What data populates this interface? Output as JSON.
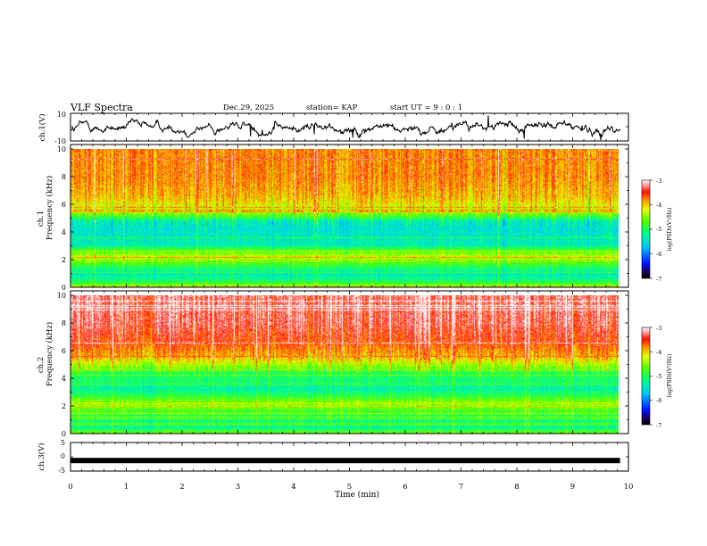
{
  "header": {
    "title": "VLF Spectra",
    "date": "Dec.29, 2025",
    "station": "station= KAP",
    "start": "start  UT =   9 : 0  : 1"
  },
  "chart_data": [
    {
      "type": "line",
      "name": "channel-1-voltage",
      "ylabel": "ch.1(V)",
      "ylim": [
        -10,
        10
      ],
      "ytick_labels": [
        "10",
        "-10"
      ],
      "x_range_min": [
        0,
        9.85
      ],
      "series": [
        {
          "name": "ch.1 waveform",
          "description": "noisy signal fluctuating roughly between -7 and 7 V"
        }
      ]
    },
    {
      "type": "heatmap",
      "name": "channel-1-spectrogram",
      "ylabel_line1": "ch.1",
      "ylabel_line2": "Frequency (kHz)",
      "ylim": [
        0,
        10
      ],
      "ytick_labels": [
        "0",
        "2",
        "4",
        "6",
        "8",
        "10"
      ],
      "x_range_min": [
        0,
        9.85
      ],
      "colorbar": {
        "label": "log(PSD)(V²/Hz)",
        "range": [
          -7,
          -3
        ],
        "tick_labels": [
          "-3",
          "-4",
          "-5",
          "-6",
          "-7"
        ]
      },
      "profile_kHz_log_psd": [
        [
          0.0,
          -4.4
        ],
        [
          0.6,
          -5.2
        ],
        [
          1.0,
          -5.4
        ],
        [
          1.5,
          -5.0
        ],
        [
          1.9,
          -4.6
        ],
        [
          2.2,
          -4.3
        ],
        [
          2.5,
          -4.6
        ],
        [
          2.8,
          -4.9
        ],
        [
          3.1,
          -5.4
        ],
        [
          3.6,
          -5.4
        ],
        [
          4.2,
          -5.5
        ],
        [
          4.8,
          -5.4
        ],
        [
          5.1,
          -4.9
        ],
        [
          5.5,
          -4.4
        ],
        [
          6.5,
          -4.0
        ],
        [
          8.0,
          -3.8
        ],
        [
          10.0,
          -3.8
        ]
      ]
    },
    {
      "type": "heatmap",
      "name": "channel-2-spectrogram",
      "ylabel_line1": "ch.2",
      "ylabel_line2": "Frequency (kHz)",
      "ylim": [
        0,
        10
      ],
      "ytick_labels": [
        "0",
        "2",
        "4",
        "6",
        "8",
        "10"
      ],
      "x_range_min": [
        0,
        9.85
      ],
      "colorbar": {
        "label": "log(PSD)(V²/Hz)",
        "range": [
          -7,
          -3
        ],
        "tick_labels": [
          "-3",
          "-4",
          "-5",
          "-6",
          "-7"
        ]
      },
      "profile_kHz_log_psd": [
        [
          0.0,
          -4.5
        ],
        [
          0.5,
          -5.3
        ],
        [
          1.0,
          -5.1
        ],
        [
          1.8,
          -4.7
        ],
        [
          2.2,
          -4.4
        ],
        [
          2.6,
          -4.8
        ],
        [
          3.2,
          -5.3
        ],
        [
          3.8,
          -5.1
        ],
        [
          4.4,
          -5.0
        ],
        [
          4.9,
          -4.5
        ],
        [
          5.5,
          -4.0
        ],
        [
          6.5,
          -3.6
        ],
        [
          8.0,
          -3.35
        ],
        [
          10.0,
          -3.3
        ]
      ]
    },
    {
      "type": "line",
      "name": "channel-3-voltage",
      "ylabel": "ch.3(V)",
      "ylim": [
        -5,
        5
      ],
      "ytick_labels": [
        "5",
        "0",
        "-5"
      ],
      "x_range_min": [
        0,
        9.85
      ],
      "series": [
        {
          "name": "ch.3 waveform",
          "description": "flat band at about -1.3 V"
        }
      ],
      "band_level_V": -1.3
    }
  ],
  "xaxis": {
    "label": "Time  (min)",
    "range": [
      0,
      10
    ],
    "tick_labels": [
      "0",
      "1",
      "2",
      "3",
      "4",
      "5",
      "6",
      "7",
      "8",
      "9",
      "10"
    ]
  }
}
